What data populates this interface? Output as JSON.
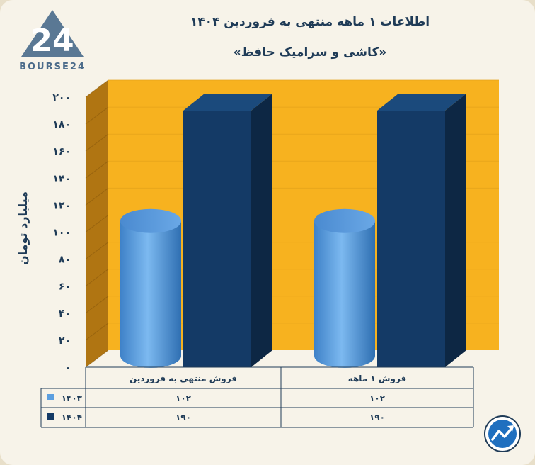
{
  "brand": {
    "logo_text": "BOURSE24"
  },
  "header": {
    "title": "اطلاعات ۱ ماهه منتهی به فروردین ۱۴۰۴",
    "subtitle": "«کاشی و سرامیک حافظ»"
  },
  "chart_data": {
    "type": "bar",
    "title": "اطلاعات ۱ ماهه منتهی به فروردین ۱۴۰۴",
    "subtitle": "«کاشی و سرامیک حافظ»",
    "ylabel": "میلیارد تومان",
    "ylim": [
      0,
      200
    ],
    "yticks": [
      0,
      20,
      40,
      60,
      80,
      100,
      120,
      140,
      160,
      180,
      200
    ],
    "ytick_labels": [
      "۰",
      "۲۰",
      "۴۰",
      "۶۰",
      "۸۰",
      "۱۰۰",
      "۱۲۰",
      "۱۴۰",
      "۱۶۰",
      "۱۸۰",
      "۲۰۰"
    ],
    "categories": [
      "فروش منتهی به فروردین",
      "فروش ۱ ماهه"
    ],
    "series": [
      {
        "name": "۱۴۰۳",
        "values": [
          102,
          102
        ],
        "value_labels": [
          "۱۰۲",
          "۱۰۲"
        ],
        "color": "#5c9fe0",
        "shape": "cylinder"
      },
      {
        "name": "۱۴۰۴",
        "values": [
          190,
          190
        ],
        "value_labels": [
          "۱۹۰",
          "۱۹۰"
        ],
        "color": "#143a66",
        "shape": "box"
      }
    ],
    "grid": true,
    "legend": "table-bottom-left",
    "colors": {
      "wall": "#f7b21f",
      "side_wall": "#b07512",
      "text": "#1f3b57"
    }
  }
}
